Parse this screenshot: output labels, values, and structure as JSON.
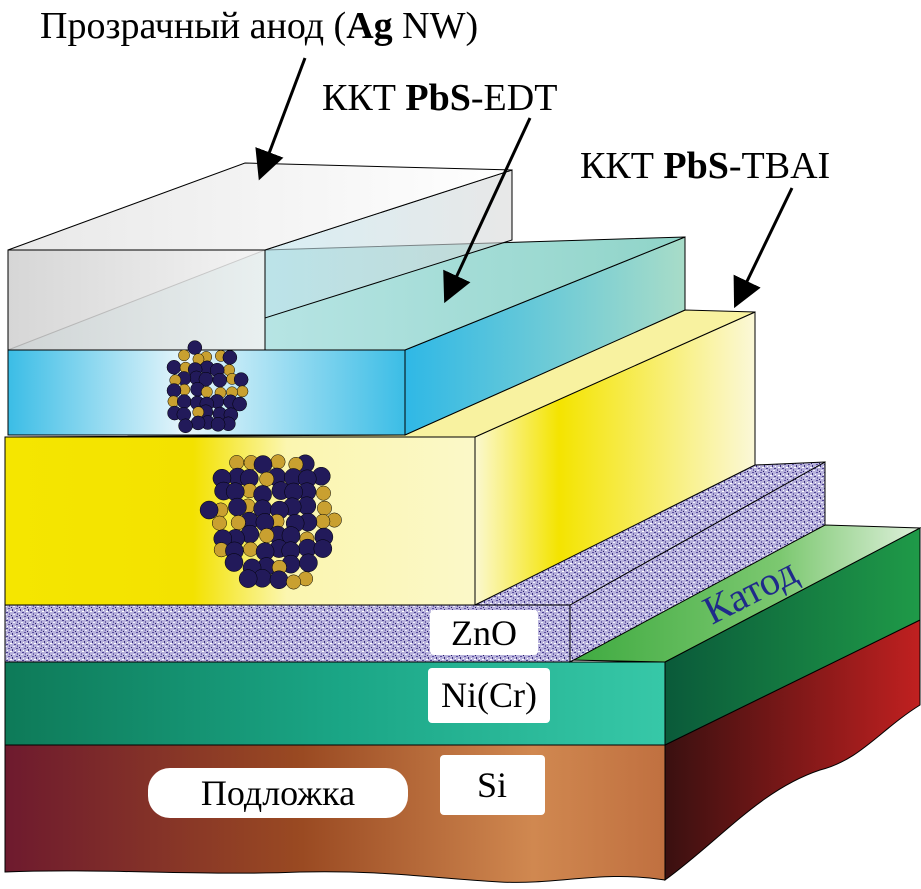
{
  "labels": {
    "anode": {
      "prefix": "Прозрачный анод (",
      "bold": "Ag",
      "suffix": " NW)"
    },
    "edt": {
      "prefix": "ККТ ",
      "bold": "PbS",
      "suffix": "-EDT"
    },
    "tbai": {
      "prefix": "ККТ ",
      "bold": "PbS",
      "suffix": "-TBAI"
    },
    "cathode": "Катод",
    "zno": "ZnO",
    "nicr": "Ni(Cr)",
    "substrate": "Подложка",
    "si": "Si"
  },
  "colors": {
    "anode": "#d8d8d8",
    "edt": "#3bbde6",
    "tbai": "#f5e600",
    "zno": "#6a5fa8",
    "nicr": "#1a9a78",
    "substrate": "#7a1f2a",
    "cathode_text": "#1f2a8a",
    "nanoparticle_dark": "#221a5a",
    "nanoparticle_gold": "#c9a030"
  }
}
